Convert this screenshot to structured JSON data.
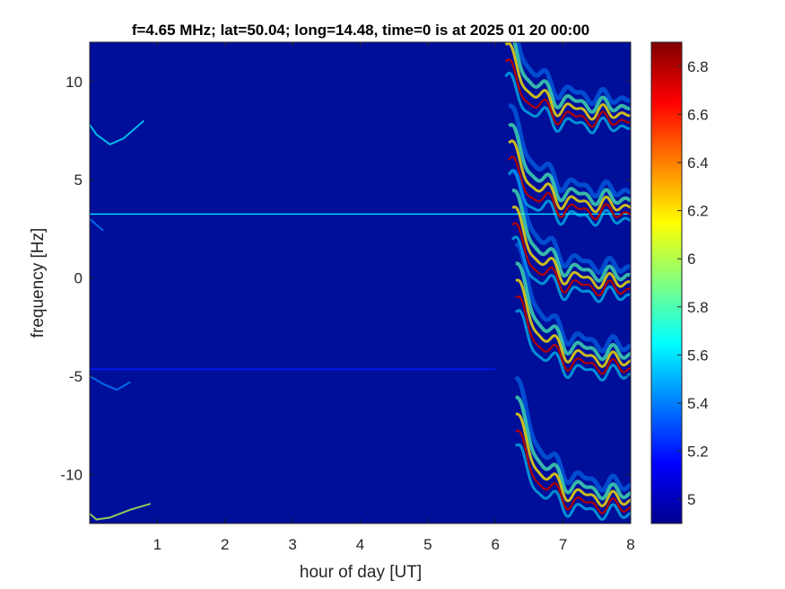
{
  "chart_data": {
    "type": "heatmap",
    "title": "f=4.65 MHz;  lat=50.04; long=14.48, time=0 is at 2025 01 20 00:00",
    "xlabel": "hour of day [UT]",
    "ylabel": "frequency [Hz]",
    "xlim": [
      0,
      8
    ],
    "ylim": [
      -12.5,
      12
    ],
    "x_ticks": [
      1,
      2,
      3,
      4,
      5,
      6,
      7,
      8
    ],
    "x_tick_labels": [
      "1",
      "2",
      "3",
      "4",
      "5",
      "6",
      "7",
      "8"
    ],
    "y_ticks": [
      10,
      5,
      0,
      -5,
      -10
    ],
    "y_tick_labels": [
      "10",
      "5",
      "0",
      "-5",
      "-10"
    ],
    "colorbar": {
      "range": [
        4.9,
        6.9
      ],
      "ticks": [
        6.8,
        6.6,
        6.4,
        6.2,
        6.0,
        5.8,
        5.6,
        5.4,
        5.2,
        5.0
      ],
      "tick_labels": [
        "6.8",
        "6.6",
        "6.4",
        "6.2",
        "6",
        "5.8",
        "5.6",
        "5.4",
        "5.2",
        "5"
      ],
      "colormap": "jet"
    },
    "background_level": 4.95,
    "horizontal_lines": [
      {
        "y": 3.25,
        "x_range": [
          0,
          8
        ],
        "level": 5.6
      },
      {
        "y": -4.65,
        "x_range": [
          0,
          6.0
        ],
        "level": 5.2
      }
    ],
    "doppler_traces": [
      {
        "base_y": 8.0,
        "start_y": 11.0,
        "x_start": 6.15,
        "x_end": 8.0,
        "level": 6.8
      },
      {
        "base_y": 3.3,
        "start_y": 6.0,
        "x_start": 6.2,
        "x_end": 8.0,
        "level": 6.8
      },
      {
        "base_y": -0.6,
        "start_y": 2.7,
        "x_start": 6.25,
        "x_end": 8.0,
        "level": 6.8
      },
      {
        "base_y": -4.6,
        "start_y": -1.0,
        "x_start": 6.3,
        "x_end": 8.0,
        "level": 6.8
      },
      {
        "base_y": -11.7,
        "start_y": -7.8,
        "x_start": 6.3,
        "x_end": 8.0,
        "level": 6.8
      }
    ],
    "faint_traces": [
      {
        "x": [
          0,
          0.1,
          0.3,
          0.5,
          0.8
        ],
        "y": [
          7.8,
          7.3,
          6.8,
          7.1,
          8.0
        ],
        "level": 5.6
      },
      {
        "x": [
          0,
          0.1,
          0.3,
          0.6,
          0.9
        ],
        "y": [
          -12.0,
          -12.3,
          -12.2,
          -11.8,
          -11.5
        ],
        "level": 6.0
      },
      {
        "x": [
          0,
          0.2,
          0.4,
          0.6
        ],
        "y": [
          -5.0,
          -5.4,
          -5.7,
          -5.3
        ],
        "level": 5.4
      },
      {
        "x": [
          0,
          0.2
        ],
        "y": [
          3.0,
          2.4
        ],
        "level": 5.4
      }
    ]
  }
}
